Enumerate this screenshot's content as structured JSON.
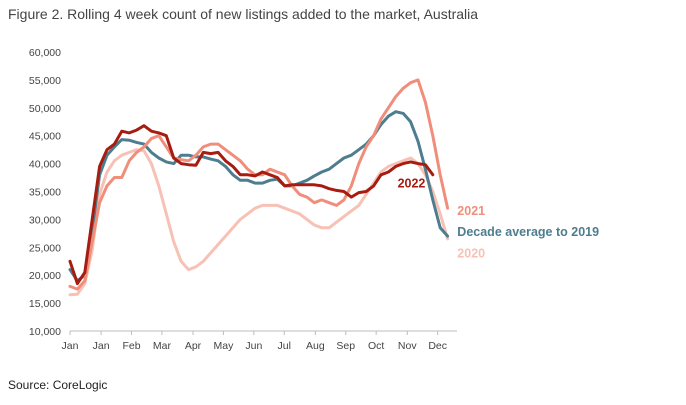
{
  "title": "Figure 2. Rolling 4 week count of new listings added to the market, Australia",
  "source": "Source: CoreLogic",
  "colors": {
    "series_2021": "#f08e7b",
    "series_2022": "#a71c10",
    "series_decade": "#4d7d8e",
    "series_2020": "#f7c1b5",
    "axis": "#bdbdbd"
  },
  "chart_data": {
    "type": "line",
    "title": "Figure 2. Rolling 4 week count of new listings added to the market, Australia",
    "xlabel": "",
    "ylabel": "",
    "ylim": [
      10000,
      60000
    ],
    "yticks": [
      10000,
      15000,
      20000,
      25000,
      30000,
      35000,
      40000,
      45000,
      50000,
      55000,
      60000
    ],
    "ytick_labels": [
      "10,000",
      "15,000",
      "20,000",
      "25,000",
      "30,000",
      "35,000",
      "40,000",
      "45,000",
      "50,000",
      "55,000",
      "60,000"
    ],
    "xticks": [
      "Jan",
      "Jan",
      "Feb",
      "Mar",
      "Apr",
      "May",
      "Jun",
      "Jul",
      "Aug",
      "Sep",
      "Oct",
      "Nov",
      "Dec"
    ],
    "grid": false,
    "legend": "direct labels at line ends",
    "x_unit": "week of year",
    "series": [
      {
        "name": "2021",
        "key": "series_2021",
        "x": [
          0,
          1,
          2,
          3,
          4,
          5,
          6,
          7,
          8,
          9,
          10,
          11,
          12,
          13,
          14,
          15,
          16,
          17,
          18,
          19,
          20,
          21,
          22,
          23,
          24,
          25,
          26,
          27,
          28,
          29,
          30,
          31,
          32,
          33,
          34,
          35,
          36,
          37,
          38,
          39,
          40,
          41,
          42,
          43,
          44,
          45,
          46,
          47,
          48,
          49,
          50,
          51
        ],
        "values": [
          18000,
          17500,
          19000,
          26000,
          33000,
          36000,
          37500,
          37500,
          40500,
          42000,
          43000,
          44500,
          45000,
          43000,
          41000,
          40700,
          40500,
          41500,
          43000,
          43500,
          43500,
          42500,
          41500,
          40500,
          39000,
          38000,
          38000,
          39000,
          38500,
          38000,
          36000,
          34500,
          34000,
          33000,
          33500,
          33000,
          32500,
          33500,
          36000,
          40000,
          43000,
          45000,
          48000,
          50000,
          52000,
          53500,
          54500,
          55000,
          51000,
          45000,
          38000,
          32000
        ]
      },
      {
        "name": "2022",
        "key": "series_2022",
        "x": [
          0,
          1,
          2,
          3,
          4,
          5,
          6,
          7,
          8,
          9,
          10,
          11,
          12,
          13,
          14,
          15,
          16,
          17,
          18,
          19,
          20,
          21,
          22,
          23,
          24,
          25,
          26,
          27,
          28,
          29,
          30,
          31,
          32,
          33,
          34,
          35,
          36,
          37,
          38,
          39,
          40,
          41,
          42,
          43,
          44,
          45,
          46,
          47,
          48,
          49
        ],
        "values": [
          22500,
          18500,
          20500,
          30000,
          39500,
          42500,
          43500,
          45800,
          45500,
          46000,
          46800,
          45800,
          45500,
          45000,
          41000,
          40000,
          39800,
          39700,
          42000,
          41800,
          42000,
          40500,
          39500,
          38000,
          38000,
          37800,
          38500,
          38000,
          37500,
          36000,
          36200,
          36200,
          36200,
          36200,
          36000,
          35500,
          35200,
          35000,
          34000,
          34800,
          35000,
          36000,
          38000,
          38500,
          39500,
          40000,
          40300,
          40000,
          39800,
          38000
        ]
      },
      {
        "name": "Decade average to 2019",
        "key": "series_decade",
        "x": [
          0,
          1,
          2,
          3,
          4,
          5,
          6,
          7,
          8,
          9,
          10,
          11,
          12,
          13,
          14,
          15,
          16,
          17,
          18,
          19,
          20,
          21,
          22,
          23,
          24,
          25,
          26,
          27,
          28,
          29,
          30,
          31,
          32,
          33,
          34,
          35,
          36,
          37,
          38,
          39,
          40,
          41,
          42,
          43,
          44,
          45,
          46,
          47,
          48,
          49,
          50,
          51
        ],
        "values": [
          21000,
          19000,
          20000,
          28000,
          38000,
          41500,
          43000,
          44300,
          44200,
          43800,
          43500,
          42000,
          41000,
          40300,
          40000,
          41500,
          41500,
          41200,
          41200,
          40800,
          40500,
          39500,
          38000,
          37000,
          37000,
          36500,
          36500,
          37000,
          37200,
          36000,
          36000,
          36500,
          37000,
          37800,
          38500,
          39000,
          40000,
          41000,
          41500,
          42500,
          43500,
          45000,
          47000,
          48500,
          49300,
          49000,
          47500,
          44000,
          39000,
          33500,
          28500,
          27000
        ]
      },
      {
        "name": "2020",
        "key": "series_2020",
        "x": [
          0,
          1,
          2,
          3,
          4,
          5,
          6,
          7,
          8,
          9,
          10,
          11,
          12,
          13,
          14,
          15,
          16,
          17,
          18,
          19,
          20,
          21,
          22,
          23,
          24,
          25,
          26,
          27,
          28,
          29,
          30,
          31,
          32,
          33,
          34,
          35,
          36,
          37,
          38,
          39,
          40,
          41,
          42,
          43,
          44,
          45,
          46,
          47,
          48,
          49,
          50,
          51
        ],
        "values": [
          16500,
          16600,
          18500,
          24500,
          34500,
          38500,
          40500,
          41500,
          42000,
          42500,
          42300,
          40000,
          36000,
          31000,
          26000,
          22500,
          21000,
          21500,
          22500,
          24000,
          25500,
          27000,
          28500,
          30000,
          31000,
          32000,
          32500,
          32500,
          32500,
          32000,
          31500,
          31000,
          30000,
          29000,
          28500,
          28500,
          29500,
          30500,
          31500,
          32500,
          34500,
          36500,
          38500,
          39500,
          40000,
          40500,
          41000,
          40000,
          38000,
          35000,
          31000,
          26500
        ]
      }
    ],
    "series_labels": [
      {
        "text": "2022",
        "key": "series_2022",
        "at_x": 48,
        "at_y": 35700,
        "anchor": "end"
      },
      {
        "text": "2021",
        "key": "series_2021",
        "at_x": 51.5,
        "at_y": 30800,
        "anchor": "start"
      },
      {
        "text": "Decade average to 2019",
        "key": "series_decade",
        "at_x": 51.5,
        "at_y": 27000,
        "anchor": "start"
      },
      {
        "text": "2020",
        "key": "series_2020",
        "at_x": 51.5,
        "at_y": 23200,
        "anchor": "start"
      }
    ]
  }
}
